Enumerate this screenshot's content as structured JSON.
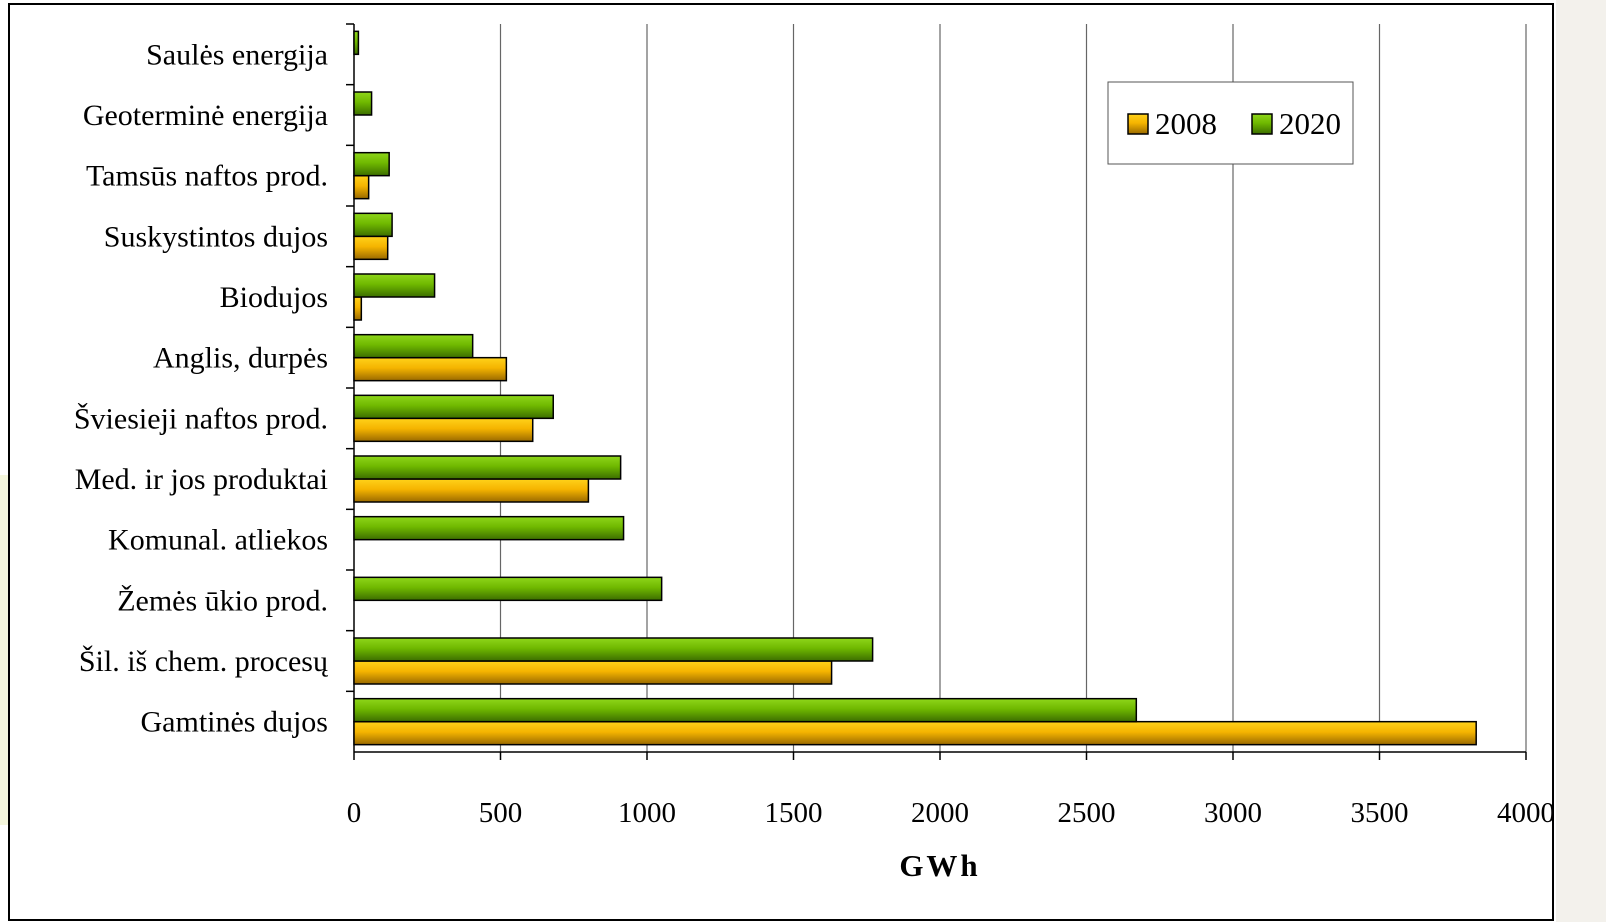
{
  "chart_data": {
    "type": "bar",
    "orientation": "horizontal",
    "xlabel": "GWh",
    "ylabel": "",
    "xlim": [
      0,
      4000
    ],
    "x_ticks": [
      "0",
      "500",
      "1000",
      "1500",
      "2000",
      "2500",
      "3000",
      "3500",
      "4000"
    ],
    "grid": "vertical",
    "legend_position": "top-right",
    "categories": [
      "Saulės energija",
      "Geoterminė energija",
      "Tamsūs naftos prod.",
      "Suskystintos dujos",
      "Biodujos",
      "Anglis, durpės",
      "Šviesieji naftos prod.",
      "Med. ir jos produktai",
      "Komunal. atliekos",
      "Žemės ūkio prod.",
      "Šil. iš chem. procesų",
      "Gamtinės dujos"
    ],
    "series": [
      {
        "name": "2008",
        "color": "#f5b400",
        "values": [
          0,
          0,
          50,
          115,
          25,
          520,
          610,
          800,
          0,
          0,
          1630,
          3830
        ]
      },
      {
        "name": "2020",
        "color": "#6fb800",
        "values": [
          15,
          60,
          120,
          130,
          275,
          405,
          680,
          910,
          920,
          1050,
          1770,
          2670
        ]
      }
    ]
  }
}
